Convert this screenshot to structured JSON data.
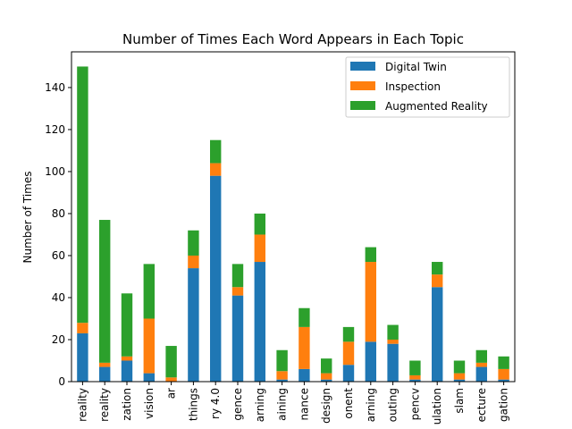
{
  "chart_data": {
    "type": "bar",
    "stacked": true,
    "title": "Number of Times Each Word Appears in Each Topic",
    "xlabel": "",
    "ylabel": "Number of Times",
    "ylim": [
      0,
      157
    ],
    "yticks": [
      0,
      20,
      40,
      60,
      80,
      100,
      120,
      140
    ],
    "grid": false,
    "legend_position": "top-right",
    "categories": [
      "reality",
      "reality",
      "zation",
      "vision",
      "ar",
      "things",
      "ry 4.0",
      "gence",
      "arning",
      "aining",
      "nance",
      "design",
      "onent",
      "arning",
      "outing",
      "pencv",
      "ulation",
      "slam",
      "ecture",
      "gation"
    ],
    "series": [
      {
        "name": "Digital Twin",
        "color": "#1f77b4",
        "values": [
          23,
          7,
          10,
          4,
          0,
          54,
          98,
          41,
          57,
          1,
          6,
          1,
          8,
          19,
          18,
          1,
          45,
          1,
          7,
          1
        ]
      },
      {
        "name": "Inspection",
        "color": "#ff7f0e",
        "values": [
          5,
          2,
          2,
          26,
          2,
          6,
          6,
          4,
          13,
          4,
          20,
          3,
          11,
          38,
          2,
          2,
          6,
          3,
          2,
          5
        ]
      },
      {
        "name": "Augmented Reality",
        "color": "#2ca02c",
        "values": [
          122,
          68,
          30,
          26,
          15,
          12,
          11,
          11,
          10,
          10,
          9,
          7,
          7,
          7,
          7,
          7,
          6,
          6,
          6,
          6
        ]
      }
    ]
  }
}
